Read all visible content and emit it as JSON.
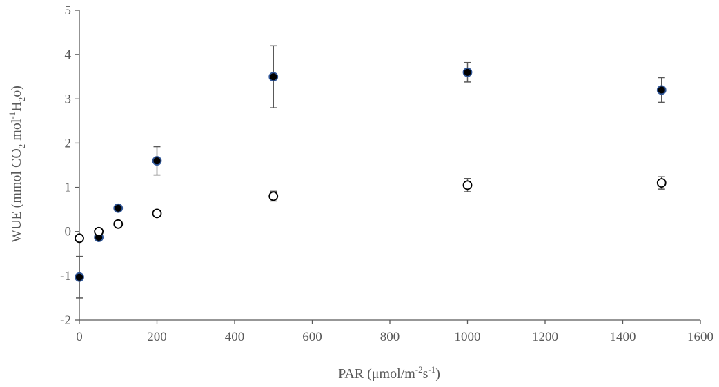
{
  "chart_data": {
    "type": "scatter",
    "xlabel": "PAR (μmol/m-2s-1)",
    "xlabel_parts": {
      "base": "PAR (μmol/m",
      "sup1": "-2",
      "mid": "s",
      "sup2": "-1",
      "end": ")"
    },
    "ylabel": "WUE (mmol CO2 mol-1H2o)",
    "ylabel_parts": {
      "p1": "WUE (mmol CO",
      "sub1": "2",
      "p2": " mol",
      "sup1": "-1",
      "p3": "H",
      "sub2": "2",
      "p4": "o)"
    },
    "xlim": [
      0,
      1600
    ],
    "ylim": [
      -2,
      5
    ],
    "xticks": [
      "0",
      "200",
      "400",
      "600",
      "800",
      "1000",
      "1200",
      "1400",
      "1600"
    ],
    "yticks": [
      "-2",
      "-1",
      "0",
      "1",
      "2",
      "3",
      "4",
      "5"
    ],
    "grid": false,
    "legend": "none",
    "series": [
      {
        "marker": "filled-circle",
        "fill": "#000000",
        "stroke": "#2f5597",
        "x": [
          0,
          50,
          100,
          200,
          500,
          1000,
          1500
        ],
        "y": [
          -1.03,
          -0.13,
          0.53,
          1.6,
          3.5,
          3.6,
          3.2
        ],
        "err": [
          0.47,
          0.05,
          0.05,
          0.32,
          0.7,
          0.22,
          0.28
        ]
      },
      {
        "marker": "open-circle",
        "fill": "#ffffff",
        "stroke": "#000000",
        "x": [
          0,
          50,
          100,
          200,
          500,
          1000,
          1500
        ],
        "y": [
          -0.15,
          0.0,
          0.17,
          0.41,
          0.8,
          1.05,
          1.1
        ],
        "err": [
          0.0,
          0.0,
          0.0,
          0.0,
          0.11,
          0.15,
          0.14
        ]
      }
    ]
  }
}
